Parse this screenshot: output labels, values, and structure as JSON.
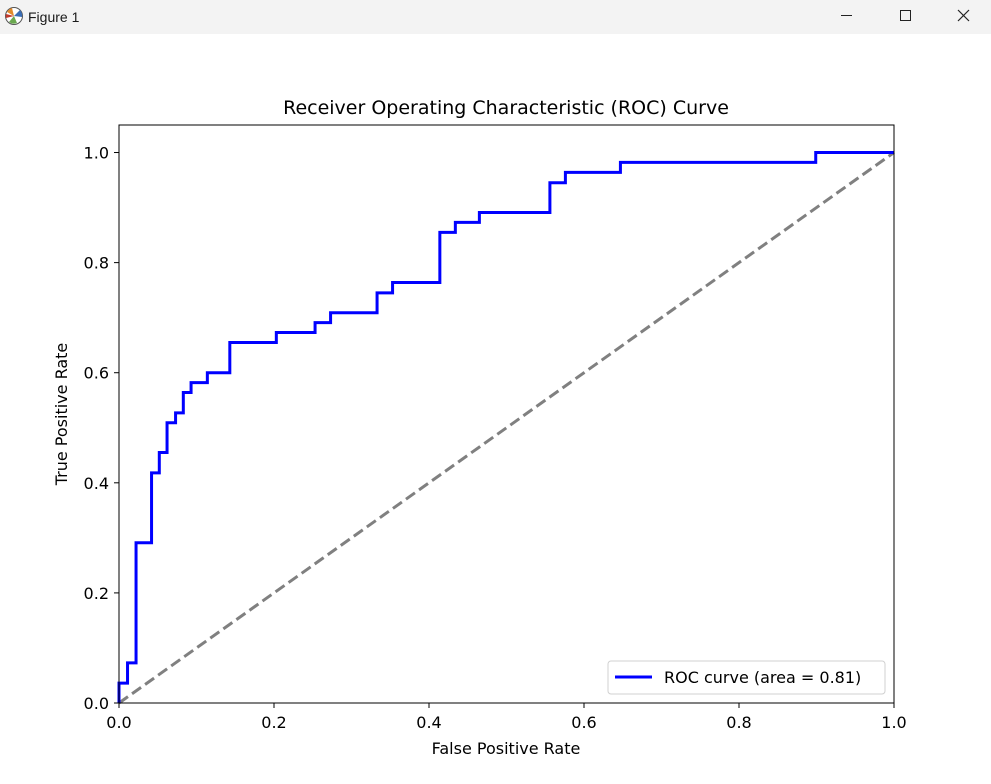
{
  "window": {
    "title": "Figure 1",
    "icon": "matplotlib-icon",
    "controls": [
      "minimize-icon",
      "maximize-icon",
      "close-icon"
    ]
  },
  "chart_data": {
    "type": "line",
    "title": "Receiver Operating Characteristic (ROC) Curve",
    "xlabel": "False Positive Rate",
    "ylabel": "True Positive Rate",
    "xlim": [
      0.0,
      1.0
    ],
    "ylim": [
      0.0,
      1.05
    ],
    "xticks": [
      "0.0",
      "0.2",
      "0.4",
      "0.6",
      "0.8",
      "1.0"
    ],
    "yticks": [
      "0.0",
      "0.2",
      "0.4",
      "0.6",
      "0.8",
      "1.0"
    ],
    "grid": false,
    "legend_position": "lower-right",
    "series": [
      {
        "name": "ROC curve (area = 0.81)",
        "color": "#0000ff",
        "style": "solid",
        "x": [
          0.0,
          0.0,
          0.011,
          0.011,
          0.022,
          0.022,
          0.042,
          0.042,
          0.052,
          0.052,
          0.062,
          0.062,
          0.073,
          0.073,
          0.083,
          0.083,
          0.093,
          0.093,
          0.114,
          0.114,
          0.143,
          0.143,
          0.203,
          0.203,
          0.253,
          0.253,
          0.273,
          0.273,
          0.333,
          0.333,
          0.353,
          0.353,
          0.414,
          0.414,
          0.434,
          0.434,
          0.465,
          0.465,
          0.556,
          0.556,
          0.576,
          0.576,
          0.647,
          0.647,
          0.899,
          0.899,
          1.0
        ],
        "y": [
          0.0,
          0.036,
          0.036,
          0.073,
          0.073,
          0.291,
          0.291,
          0.418,
          0.418,
          0.455,
          0.455,
          0.509,
          0.509,
          0.527,
          0.527,
          0.564,
          0.564,
          0.582,
          0.582,
          0.6,
          0.6,
          0.655,
          0.655,
          0.673,
          0.673,
          0.691,
          0.691,
          0.709,
          0.709,
          0.745,
          0.745,
          0.764,
          0.764,
          0.855,
          0.855,
          0.873,
          0.873,
          0.891,
          0.891,
          0.945,
          0.945,
          0.964,
          0.964,
          0.982,
          0.982,
          1.0,
          1.0
        ]
      },
      {
        "name": "",
        "color": "#808080",
        "style": "dashed",
        "x": [
          0.0,
          1.0
        ],
        "y": [
          0.0,
          1.0
        ]
      }
    ]
  }
}
